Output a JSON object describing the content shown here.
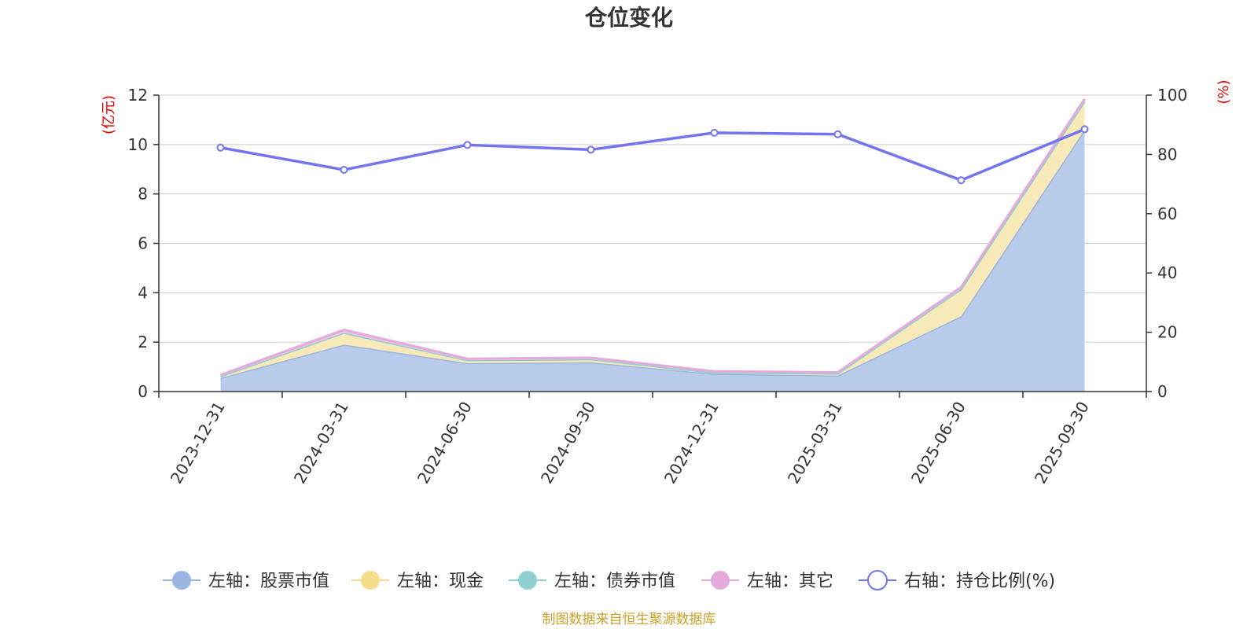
{
  "chart_data": {
    "type": "area",
    "title": "仓位变化",
    "x": [
      "2023-12-31",
      "2024-03-31",
      "2024-06-30",
      "2024-09-30",
      "2024-12-31",
      "2025-03-31",
      "2025-06-30",
      "2025-09-30"
    ],
    "left_axis": {
      "label": "(亿元)",
      "ylim": [
        0,
        12
      ],
      "ticks": [
        "0",
        "2",
        "4",
        "6",
        "8",
        "10",
        "12"
      ]
    },
    "right_axis": {
      "label": "(%)",
      "ylim": [
        0,
        100
      ],
      "ticks": [
        "0",
        "20",
        "40",
        "60",
        "80",
        "100"
      ]
    },
    "grid": true,
    "legend_position": "bottom",
    "stacked_series": [
      {
        "name": "左轴：股票市值",
        "color": "#9ab6e0",
        "fill": "#b8cbea",
        "values": [
          0.55,
          1.9,
          1.15,
          1.18,
          0.72,
          0.65,
          3.05,
          10.6
        ]
      },
      {
        "name": "左轴：现金",
        "color": "#f5dd8a",
        "fill": "#f8eab8",
        "values": [
          0.07,
          0.48,
          0.12,
          0.13,
          0.05,
          0.08,
          1.1,
          1.15
        ]
      },
      {
        "name": "左轴：债券市值",
        "color": "#8fd0d0",
        "fill": "#a8dcdc",
        "values": [
          0,
          0,
          0,
          0,
          0,
          0,
          0,
          0
        ]
      },
      {
        "name": "左轴：其它",
        "color": "#e3aadb",
        "fill": "#edc3e6",
        "values": [
          0.05,
          0.12,
          0.06,
          0.06,
          0.05,
          0.05,
          0.08,
          0.1
        ]
      }
    ],
    "line_series": {
      "name": "右轴：持仓比例(%)",
      "color": "#7474ef",
      "values": [
        82.3,
        74.8,
        83.2,
        81.6,
        87.3,
        86.8,
        71.3,
        88.5
      ]
    }
  },
  "footer": {
    "source": "制图数据来自恒生聚源数据库"
  }
}
